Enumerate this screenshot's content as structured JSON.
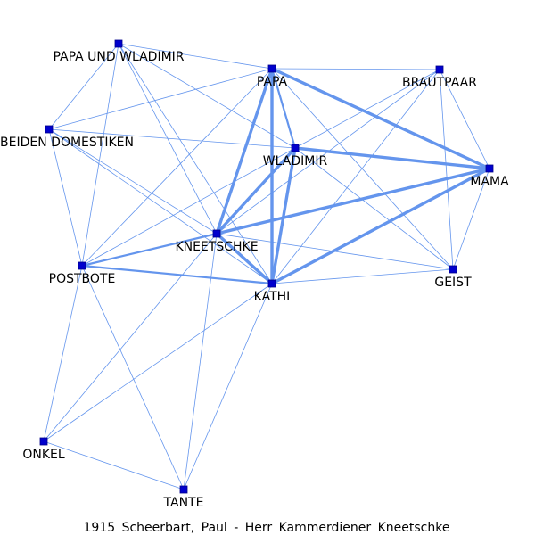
{
  "caption": "1915 Scheerbart, Paul - Herr Kammerdiener Kneetschke",
  "colors": {
    "edge": "#6495ED",
    "node_fill": "#0000CD",
    "node_stroke": "#00008B",
    "label": "#000000",
    "background": "#FFFFFF"
  },
  "nodes": [
    {
      "id": "papa_und_wladimir",
      "label": "PAPA UND WLADIMIR"
    },
    {
      "id": "papa",
      "label": "PAPA"
    },
    {
      "id": "brautpaar",
      "label": "BRAUTPAAR"
    },
    {
      "id": "beiden_domestiken",
      "label": "BEIDEN DOMESTIKEN"
    },
    {
      "id": "wladimir",
      "label": "WLADIMIR"
    },
    {
      "id": "mama",
      "label": "MAMA"
    },
    {
      "id": "kneetschke",
      "label": "KNEETSCHKE"
    },
    {
      "id": "postbote",
      "label": "POSTBOTE"
    },
    {
      "id": "kathi",
      "label": "KATHI"
    },
    {
      "id": "geist",
      "label": "GEIST"
    },
    {
      "id": "onkel",
      "label": "ONKEL"
    },
    {
      "id": "tante",
      "label": "TANTE"
    }
  ],
  "edges": [
    {
      "source": "papa",
      "target": "kathi",
      "weight": 3
    },
    {
      "source": "papa",
      "target": "kneetschke",
      "weight": 3
    },
    {
      "source": "papa",
      "target": "mama",
      "weight": 3
    },
    {
      "source": "kneetschke",
      "target": "kathi",
      "weight": 3
    },
    {
      "source": "wladimir",
      "target": "kathi",
      "weight": 3
    },
    {
      "source": "wladimir",
      "target": "kneetschke",
      "weight": 3
    },
    {
      "source": "wladimir",
      "target": "mama",
      "weight": 3
    },
    {
      "source": "kneetschke",
      "target": "mama",
      "weight": 3
    },
    {
      "source": "kathi",
      "target": "mama",
      "weight": 3
    },
    {
      "source": "papa",
      "target": "wladimir",
      "weight": 2
    },
    {
      "source": "postbote",
      "target": "kneetschke",
      "weight": 2
    },
    {
      "source": "postbote",
      "target": "kathi",
      "weight": 2
    },
    {
      "source": "papa_und_wladimir",
      "target": "papa",
      "weight": 1
    },
    {
      "source": "papa_und_wladimir",
      "target": "beiden_domestiken",
      "weight": 1
    },
    {
      "source": "papa_und_wladimir",
      "target": "postbote",
      "weight": 1
    },
    {
      "source": "papa_und_wladimir",
      "target": "kneetschke",
      "weight": 1
    },
    {
      "source": "papa_und_wladimir",
      "target": "kathi",
      "weight": 1
    },
    {
      "source": "papa_und_wladimir",
      "target": "wladimir",
      "weight": 1
    },
    {
      "source": "papa",
      "target": "brautpaar",
      "weight": 1
    },
    {
      "source": "papa",
      "target": "beiden_domestiken",
      "weight": 1
    },
    {
      "source": "papa",
      "target": "postbote",
      "weight": 1
    },
    {
      "source": "papa",
      "target": "geist",
      "weight": 1
    },
    {
      "source": "brautpaar",
      "target": "wladimir",
      "weight": 1
    },
    {
      "source": "brautpaar",
      "target": "mama",
      "weight": 1
    },
    {
      "source": "brautpaar",
      "target": "geist",
      "weight": 1
    },
    {
      "source": "brautpaar",
      "target": "kathi",
      "weight": 1
    },
    {
      "source": "brautpaar",
      "target": "kneetschke",
      "weight": 1
    },
    {
      "source": "beiden_domestiken",
      "target": "wladimir",
      "weight": 1
    },
    {
      "source": "beiden_domestiken",
      "target": "kneetschke",
      "weight": 1
    },
    {
      "source": "beiden_domestiken",
      "target": "kathi",
      "weight": 1
    },
    {
      "source": "beiden_domestiken",
      "target": "postbote",
      "weight": 1
    },
    {
      "source": "wladimir",
      "target": "postbote",
      "weight": 1
    },
    {
      "source": "wladimir",
      "target": "geist",
      "weight": 1
    },
    {
      "source": "mama",
      "target": "geist",
      "weight": 1
    },
    {
      "source": "kneetschke",
      "target": "geist",
      "weight": 1
    },
    {
      "source": "kathi",
      "target": "geist",
      "weight": 1
    },
    {
      "source": "kneetschke",
      "target": "onkel",
      "weight": 1
    },
    {
      "source": "kneetschke",
      "target": "tante",
      "weight": 1
    },
    {
      "source": "kathi",
      "target": "onkel",
      "weight": 1
    },
    {
      "source": "kathi",
      "target": "tante",
      "weight": 1
    },
    {
      "source": "postbote",
      "target": "onkel",
      "weight": 1
    },
    {
      "source": "postbote",
      "target": "tante",
      "weight": 1
    },
    {
      "source": "onkel",
      "target": "tante",
      "weight": 1
    }
  ]
}
